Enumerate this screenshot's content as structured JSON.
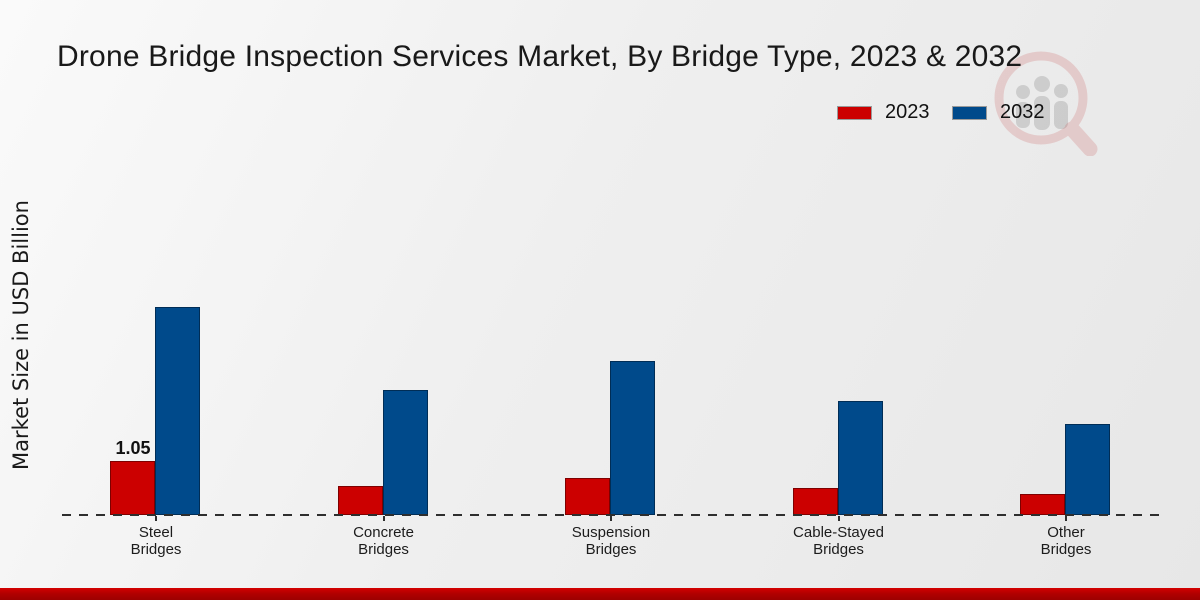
{
  "title": "Drone Bridge Inspection Services Market, By Bridge Type, 2023 & 2032",
  "y_axis_label": "Market Size in USD Billion",
  "legend": {
    "items": [
      {
        "label": "2023",
        "color": "#cc0000"
      },
      {
        "label": "2032",
        "color": "#004a8b"
      }
    ]
  },
  "footer": {
    "bar_color": "#b20000"
  },
  "watermark": {
    "name": "market-research-logo-watermark"
  },
  "chart_data": {
    "type": "bar",
    "title": "Drone Bridge Inspection Services Market, By Bridge Type, 2023 & 2032",
    "categories": [
      "Steel Bridges",
      "Concrete Bridges",
      "Suspension Bridges",
      "Cable-Stayed Bridges",
      "Other Bridges"
    ],
    "series": [
      {
        "name": "2023",
        "color": "#cc0000",
        "values": [
          1.05,
          0.57,
          0.73,
          0.53,
          0.41
        ]
      },
      {
        "name": "2032",
        "color": "#004a8b",
        "values": [
          4.08,
          2.45,
          3.02,
          2.24,
          1.79
        ]
      }
    ],
    "data_labels": [
      {
        "series": "2023",
        "category": "Steel Bridges",
        "text": "1.05"
      }
    ],
    "xlabel": "",
    "ylabel": "Market Size in USD Billion",
    "ylim": [
      0,
      4.5
    ],
    "grid": false,
    "y_axis_visible": false,
    "baseline_style": "dashed",
    "legend_position": "top-right"
  }
}
